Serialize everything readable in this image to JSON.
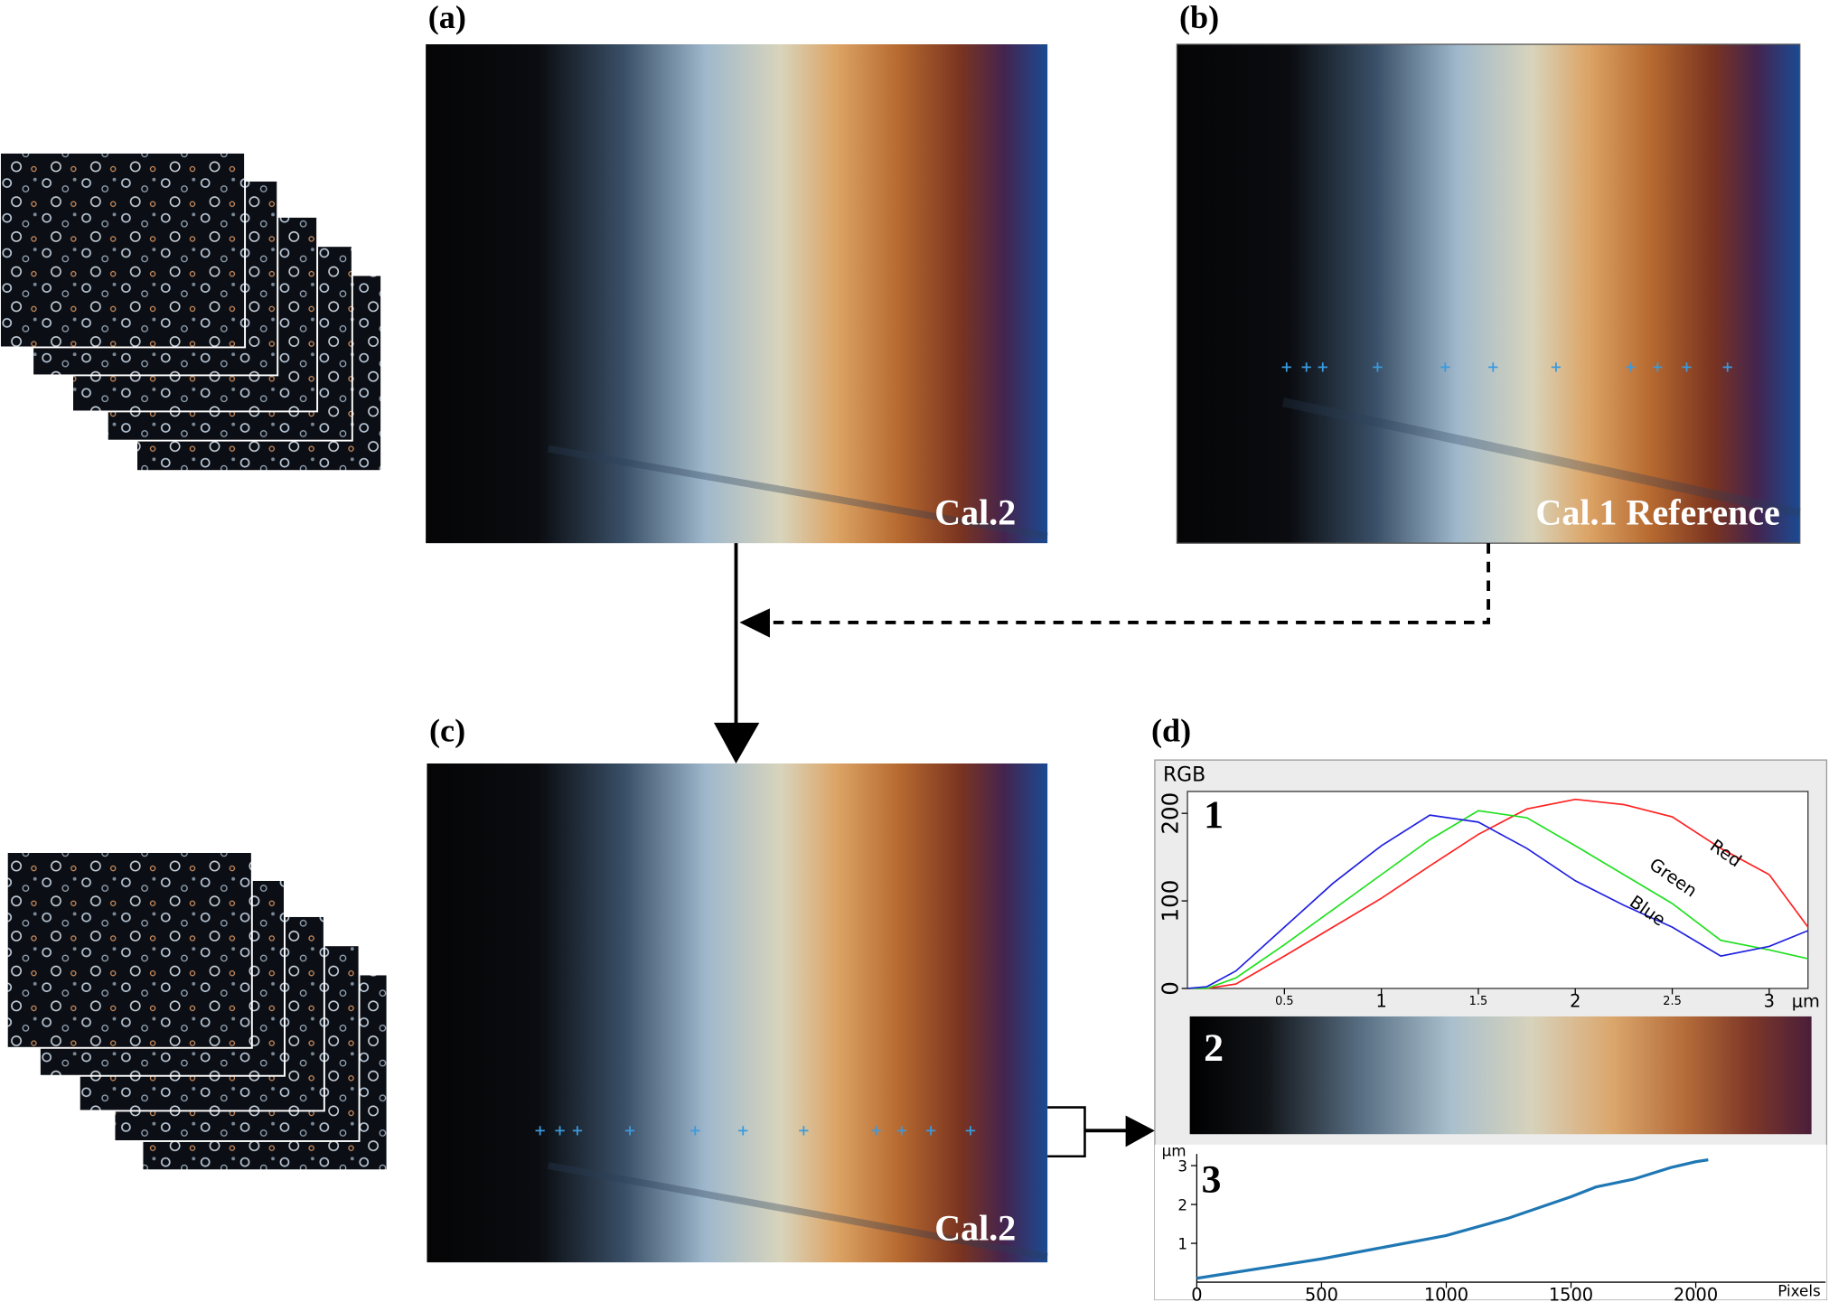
{
  "panels": {
    "a": {
      "label": "(a)",
      "caption": "Cal.2"
    },
    "b": {
      "label": "(b)",
      "caption": "Cal.1 Reference"
    },
    "c": {
      "label": "(c)",
      "caption": "Cal.2"
    },
    "d": {
      "label": "(d)"
    }
  },
  "subpanels": [
    "1",
    "2",
    "3"
  ],
  "chart_data": [
    {
      "type": "line",
      "title": "RGB",
      "xlabel": "μm",
      "x": [
        0,
        0.1,
        0.25,
        0.5,
        0.75,
        1,
        1.25,
        1.5,
        1.75,
        2,
        2.25,
        2.5,
        2.75,
        3,
        3.2
      ],
      "series": [
        {
          "name": "Red",
          "color": "#ff2020",
          "values": [
            0,
            0,
            5,
            37,
            70,
            103,
            140,
            176,
            205,
            216,
            210,
            196,
            160,
            130,
            70
          ]
        },
        {
          "name": "Green",
          "color": "#20e020",
          "values": [
            0,
            0,
            12,
            50,
            90,
            130,
            170,
            203,
            195,
            163,
            130,
            97,
            55,
            44,
            34
          ]
        },
        {
          "name": "Blue",
          "color": "#2020e0",
          "values": [
            0,
            2,
            20,
            70,
            120,
            163,
            198,
            190,
            160,
            123,
            95,
            70,
            37,
            48,
            66
          ]
        }
      ],
      "xlim": [
        0,
        3.2
      ],
      "ylim": [
        0,
        225
      ],
      "xticks": [
        0.5,
        1,
        1.5,
        2,
        2.5,
        3
      ],
      "yticks": [
        0,
        100,
        200
      ]
    },
    {
      "type": "line",
      "xlabel": "Pixels",
      "ylabel": "μm",
      "x": [
        0,
        250,
        500,
        750,
        1000,
        1250,
        1500,
        1600,
        1750,
        1900,
        2000,
        2050
      ],
      "values": [
        0.1,
        0.35,
        0.6,
        0.9,
        1.2,
        1.65,
        2.2,
        2.45,
        2.65,
        2.95,
        3.1,
        3.15
      ],
      "color": "#1f77b4",
      "xlim": [
        0,
        2520
      ],
      "ylim": [
        0,
        3.3
      ],
      "xticks": [
        0,
        500,
        1000,
        1500,
        2000
      ],
      "yticks": [
        1,
        2,
        3
      ]
    }
  ]
}
